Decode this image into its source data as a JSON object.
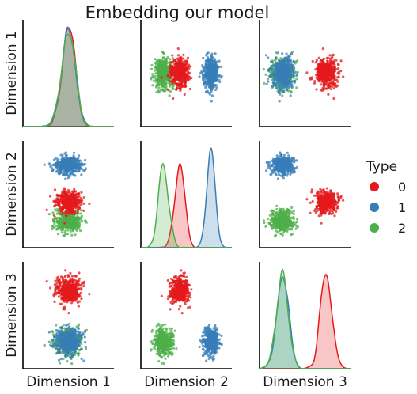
{
  "chart_data": {
    "type": "scatter",
    "title": "Embedding our model",
    "variables": [
      "Dimension 1",
      "Dimension 2",
      "Dimension 3"
    ],
    "legend": {
      "title": "Type",
      "placement": "right",
      "entries": [
        {
          "label": "0",
          "color": "#e41a1c"
        },
        {
          "label": "1",
          "color": "#377eb8"
        },
        {
          "label": "2",
          "color": "#4daf4a"
        }
      ]
    },
    "groups": [
      {
        "name": "0",
        "color": "#e41a1c",
        "mean": [
          0.5,
          0.43,
          0.73
        ],
        "sd": [
          0.07,
          0.05,
          0.06
        ]
      },
      {
        "name": "1",
        "color": "#377eb8",
        "mean": [
          0.5,
          0.77,
          0.25
        ],
        "sd": [
          0.07,
          0.04,
          0.06
        ]
      },
      {
        "name": "2",
        "color": "#4daf4a",
        "mean": [
          0.5,
          0.25,
          0.25
        ],
        "sd": [
          0.07,
          0.05,
          0.06
        ]
      }
    ],
    "points_per_group": 450,
    "axis_ticks_shown": false,
    "grid": false
  }
}
